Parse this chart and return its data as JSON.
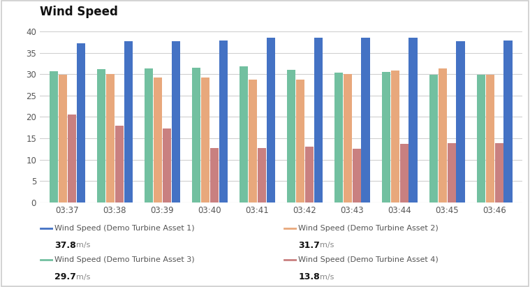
{
  "title": "Wind Speed",
  "times": [
    "03:37",
    "03:38",
    "03:39",
    "03:40",
    "03:41",
    "03:42",
    "03:43",
    "03:44",
    "03:45",
    "03:46"
  ],
  "asset1": [
    37.2,
    37.7,
    37.8,
    37.9,
    38.5,
    38.5,
    38.6,
    38.5,
    37.8,
    37.9
  ],
  "asset2": [
    29.8,
    30.0,
    29.3,
    29.3,
    28.8,
    28.8,
    30.1,
    30.9,
    31.4,
    29.8
  ],
  "asset3": [
    30.7,
    31.2,
    31.4,
    31.5,
    31.8,
    31.1,
    30.4,
    30.5,
    29.8,
    29.9
  ],
  "asset4": [
    20.5,
    18.0,
    17.3,
    12.7,
    12.7,
    13.0,
    12.6,
    13.7,
    13.9,
    13.9
  ],
  "color1": "#4472C4",
  "color2": "#E8A87C",
  "color3": "#72C0A0",
  "color4": "#C98080",
  "legend1": "Wind Speed (Demo Turbine Asset 1)",
  "legend2": "Wind Speed (Demo Turbine Asset 2)",
  "legend3": "Wind Speed (Demo Turbine Asset 3)",
  "legend4": "Wind Speed (Demo Turbine Asset 4)",
  "value1": "37.8",
  "value2": "31.7",
  "value3": "29.7",
  "value4": "13.8",
  "unit": "m/s",
  "ylim": [
    0,
    42
  ],
  "yticks": [
    0,
    5,
    10,
    15,
    20,
    25,
    30,
    35,
    40
  ],
  "background_color": "#ffffff",
  "grid_color": "#d0d0d0",
  "border_color": "#cccccc",
  "label_color": "#555555",
  "title_color": "#111111",
  "value_color": "#111111",
  "unit_color": "#888888",
  "bar_order": [
    2,
    1,
    3,
    0
  ]
}
